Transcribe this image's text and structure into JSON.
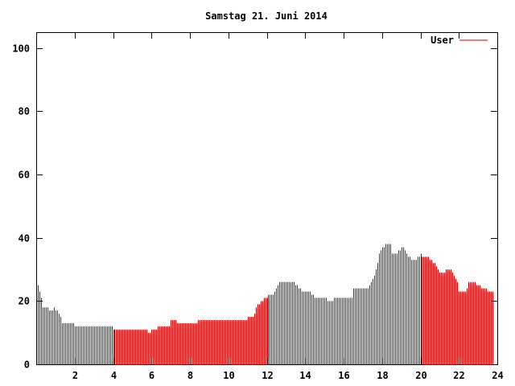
{
  "chart_data": {
    "type": "bar",
    "title": "Samstag 21. Juni 2014",
    "xlabel": "",
    "ylabel": "",
    "xlim": [
      0,
      24
    ],
    "ylim": [
      0,
      105
    ],
    "x_ticks": [
      "2",
      "4",
      "6",
      "8",
      "10",
      "12",
      "14",
      "16",
      "18",
      "20",
      "22",
      "24"
    ],
    "y_ticks": [
      "0",
      "20",
      "40",
      "60",
      "80",
      "100"
    ],
    "grid": false,
    "legend_position": "top-right",
    "series": [
      {
        "name": "User",
        "color": "#cc0000",
        "interval_minutes": 5,
        "values": [
          25,
          25,
          23,
          21,
          18,
          18,
          18,
          18,
          17,
          17,
          17,
          18,
          17,
          17,
          16,
          15,
          13,
          13,
          13,
          13,
          13,
          13,
          13,
          13,
          12,
          12,
          12,
          12,
          12,
          12,
          12,
          12,
          12,
          12,
          12,
          12,
          12,
          12,
          12,
          12,
          12,
          12,
          12,
          12,
          12,
          12,
          12,
          12,
          11,
          11,
          11,
          11,
          11,
          11,
          11,
          11,
          11,
          11,
          11,
          11,
          11,
          11,
          11,
          11,
          11,
          11,
          11,
          11,
          11,
          11,
          10,
          10,
          11,
          11,
          11,
          11,
          12,
          12,
          12,
          12,
          12,
          12,
          12,
          12,
          14,
          14,
          14,
          14,
          13,
          13,
          13,
          13,
          13,
          13,
          13,
          13,
          13,
          13,
          13,
          13,
          13,
          14,
          14,
          14,
          14,
          14,
          14,
          14,
          14,
          14,
          14,
          14,
          14,
          14,
          14,
          14,
          14,
          14,
          14,
          14,
          14,
          14,
          14,
          14,
          14,
          14,
          14,
          14,
          14,
          14,
          14,
          14,
          15,
          15,
          15,
          15,
          16,
          18,
          19,
          19,
          20,
          20,
          21,
          21,
          21,
          22,
          22,
          22,
          22,
          23,
          24,
          25,
          26,
          26,
          26,
          26,
          26,
          26,
          26,
          26,
          26,
          26,
          25,
          25,
          24,
          24,
          23,
          23,
          23,
          23,
          23,
          23,
          22,
          22,
          21,
          21,
          21,
          21,
          21,
          21,
          21,
          21,
          20,
          20,
          20,
          20,
          21,
          21,
          21,
          21,
          21,
          21,
          21,
          21,
          21,
          21,
          21,
          21,
          24,
          24,
          24,
          24,
          24,
          24,
          24,
          24,
          24,
          24,
          25,
          26,
          27,
          28,
          30,
          32,
          35,
          36,
          37,
          37,
          38,
          38,
          38,
          38,
          35,
          35,
          35,
          35,
          36,
          36,
          37,
          37,
          36,
          35,
          34,
          34,
          33,
          33,
          33,
          33,
          34,
          34,
          35,
          34,
          34,
          34,
          34,
          34,
          33,
          33,
          32,
          32,
          31,
          30,
          29,
          29,
          29,
          29,
          30,
          30,
          30,
          30,
          29,
          28,
          27,
          26,
          23,
          23,
          23,
          23,
          23,
          24,
          26,
          26,
          26,
          26,
          26,
          25,
          25,
          25,
          24,
          24,
          24,
          24,
          23,
          23,
          23,
          23
        ]
      }
    ]
  }
}
